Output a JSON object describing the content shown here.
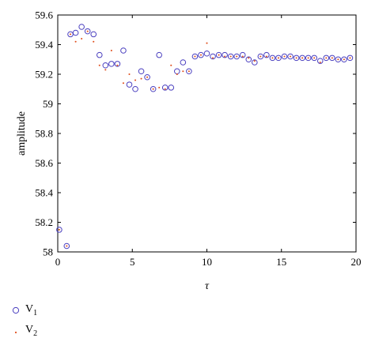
{
  "chart_data": {
    "type": "scatter",
    "xlabel": "τ",
    "ylabel": "amplitude",
    "xlim": [
      0,
      20
    ],
    "ylim": [
      58,
      59.6
    ],
    "xticks": [
      "0",
      "5",
      "10",
      "15",
      "20"
    ],
    "yticks": [
      "58",
      "58.2",
      "58.4",
      "58.6",
      "58.8",
      "59",
      "59.2",
      "59.4",
      "59.6"
    ],
    "grid": false,
    "legend_position": "bottom-left",
    "series": [
      {
        "name": "V",
        "name_subscript": "1",
        "marker": "circle-open",
        "color": "#4a3fbf",
        "x": [
          0.1,
          0.6,
          0.85,
          1.2,
          1.6,
          2.0,
          2.4,
          2.8,
          3.2,
          3.6,
          4.0,
          4.4,
          4.8,
          5.2,
          5.6,
          6.0,
          6.4,
          6.8,
          7.2,
          7.6,
          8.0,
          8.4,
          8.8,
          9.2,
          9.6,
          10.0,
          10.4,
          10.8,
          11.2,
          11.6,
          12.0,
          12.4,
          12.8,
          13.2,
          13.6,
          14.0,
          14.4,
          14.8,
          15.2,
          15.6,
          16.0,
          16.4,
          16.8,
          17.2,
          17.6,
          18.0,
          18.4,
          18.8,
          19.2,
          19.6
        ],
        "y": [
          58.15,
          58.04,
          59.47,
          59.48,
          59.52,
          59.49,
          59.47,
          59.33,
          59.26,
          59.27,
          59.27,
          59.36,
          59.13,
          59.1,
          59.22,
          59.18,
          59.1,
          59.33,
          59.11,
          59.11,
          59.22,
          59.28,
          59.22,
          59.32,
          59.33,
          59.34,
          59.32,
          59.33,
          59.33,
          59.32,
          59.32,
          59.33,
          59.3,
          59.28,
          59.32,
          59.33,
          59.31,
          59.31,
          59.32,
          59.32,
          59.31,
          59.31,
          59.31,
          59.31,
          59.29,
          59.31,
          59.31,
          59.3,
          59.3,
          59.31
        ]
      },
      {
        "name": "V",
        "name_subscript": "2",
        "marker": "dot",
        "color": "#e0501e",
        "x": [
          0.1,
          0.6,
          0.85,
          1.2,
          1.6,
          2.0,
          2.4,
          2.8,
          3.2,
          3.6,
          4.0,
          4.4,
          4.8,
          5.2,
          5.6,
          6.0,
          6.4,
          6.8,
          7.2,
          7.6,
          8.0,
          8.4,
          8.8,
          9.2,
          9.6,
          10.0,
          10.4,
          10.8,
          11.2,
          11.6,
          12.0,
          12.4,
          12.8,
          13.2,
          13.6,
          14.0,
          14.4,
          14.8,
          15.2,
          15.6,
          16.0,
          16.4,
          16.8,
          17.2,
          17.6,
          18.0,
          18.4,
          18.8,
          19.2,
          19.6
        ],
        "y": [
          58.15,
          58.04,
          59.47,
          59.42,
          59.44,
          59.49,
          59.42,
          59.26,
          59.23,
          59.36,
          59.26,
          59.14,
          59.2,
          59.16,
          59.17,
          59.18,
          59.1,
          59.11,
          59.1,
          59.26,
          59.2,
          59.22,
          59.22,
          59.32,
          59.33,
          59.41,
          59.31,
          59.33,
          59.32,
          59.32,
          59.32,
          59.32,
          59.31,
          59.29,
          59.32,
          59.32,
          59.31,
          59.31,
          59.32,
          59.32,
          59.31,
          59.31,
          59.31,
          59.31,
          59.28,
          59.31,
          59.31,
          59.3,
          59.3,
          59.31
        ]
      }
    ]
  }
}
